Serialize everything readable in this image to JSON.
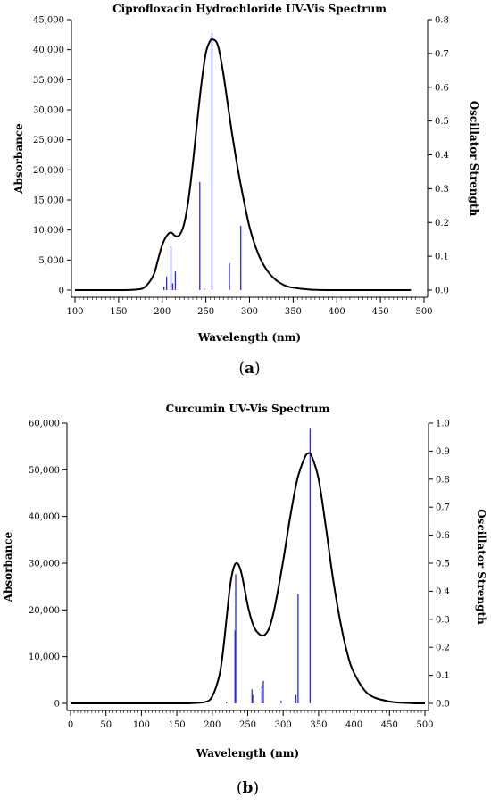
{
  "chart_data": [
    {
      "type": "line",
      "panel_label": "a",
      "title": "Ciprofloxacin Hydrochloride UV-Vis Spectrum",
      "xlabel": "Wavelength (nm)",
      "ylabel": "Absorbance",
      "y2label": "Oscillator Strength",
      "xlim": [
        100,
        500
      ],
      "ylim": [
        0,
        45000
      ],
      "y2lim": [
        0,
        0.8
      ],
      "xticks": [
        "100",
        "150",
        "200",
        "250",
        "300",
        "350",
        "400",
        "450",
        "500"
      ],
      "yticks": [
        "0",
        "5,000",
        "10,000",
        "15,000",
        "20,000",
        "25,000",
        "30,000",
        "35,000",
        "40,000",
        "45,000"
      ],
      "y2ticks": [
        "0.0",
        "0.1",
        "0.2",
        "0.3",
        "0.4",
        "0.5",
        "0.6",
        "0.7",
        "0.8"
      ],
      "curve_color": "#000000",
      "stick_color": "#2b2bd9",
      "series": [
        {
          "name": "",
          "kind": "absorbance-curve",
          "x": [
            100,
            150,
            170,
            180,
            190,
            195,
            200,
            205,
            210,
            215,
            220,
            225,
            230,
            235,
            240,
            245,
            250,
            255,
            258,
            262,
            265,
            270,
            275,
            280,
            285,
            290,
            300,
            310,
            320,
            330,
            340,
            350,
            370,
            400,
            450,
            485
          ],
          "y": [
            0,
            0,
            100,
            500,
            2500,
            5000,
            7500,
            9000,
            9600,
            9000,
            9200,
            11000,
            15000,
            21000,
            28000,
            34500,
            39500,
            41500,
            41700,
            41300,
            40000,
            36000,
            31000,
            26000,
            21500,
            17500,
            10500,
            6000,
            3300,
            1700,
            800,
            400,
            80,
            0,
            0,
            0
          ]
        },
        {
          "name": "",
          "kind": "oscillator-sticks",
          "x": [
            202,
            205,
            210,
            212,
            215,
            243,
            248,
            257,
            277,
            290
          ],
          "y": [
            0.01,
            0.04,
            0.13,
            0.02,
            0.055,
            0.32,
            0.005,
            0.76,
            0.08,
            0.19
          ]
        }
      ]
    },
    {
      "type": "line",
      "panel_label": "b",
      "title": "Curcumin UV-Vis Spectrum",
      "xlabel": "Wavelength (nm)",
      "ylabel": "Absorbance",
      "y2label": "Oscillator Strength",
      "xlim": [
        0,
        500
      ],
      "ylim": [
        0,
        60000
      ],
      "y2lim": [
        0,
        1.0
      ],
      "xticks": [
        "0",
        "50",
        "100",
        "150",
        "200",
        "250",
        "300",
        "350",
        "400",
        "450",
        "500"
      ],
      "yticks": [
        "0",
        "10,000",
        "20,000",
        "30,000",
        "40,000",
        "50,000",
        "60,000"
      ],
      "y2ticks": [
        "0.0",
        "0.1",
        "0.2",
        "0.3",
        "0.4",
        "0.5",
        "0.6",
        "0.7",
        "0.8",
        "0.9",
        "1.0"
      ],
      "curve_color": "#000000",
      "stick_color": "#2b2bd9",
      "series": [
        {
          "name": "",
          "kind": "absorbance-curve",
          "x": [
            0,
            150,
            170,
            190,
            200,
            210,
            215,
            220,
            225,
            230,
            235,
            240,
            245,
            250,
            255,
            260,
            265,
            270,
            275,
            280,
            285,
            290,
            300,
            310,
            320,
            330,
            335,
            340,
            350,
            360,
            370,
            380,
            390,
            400,
            420,
            450,
            480,
            500
          ],
          "y": [
            0,
            0,
            50,
            300,
            1500,
            6000,
            11000,
            18000,
            25000,
            29000,
            30000,
            28500,
            25000,
            21000,
            18000,
            16000,
            15000,
            14500,
            14800,
            16000,
            18500,
            22000,
            30500,
            40000,
            48000,
            52500,
            53500,
            53000,
            48000,
            38000,
            27000,
            18000,
            11000,
            6500,
            2000,
            400,
            50,
            0
          ]
        },
        {
          "name": "",
          "kind": "oscillator-sticks",
          "x": [
            220,
            232,
            233,
            256,
            257,
            270,
            272,
            297,
            318,
            321,
            338
          ],
          "y": [
            0.005,
            0.26,
            0.46,
            0.05,
            0.03,
            0.06,
            0.08,
            0.01,
            0.03,
            0.39,
            0.98
          ]
        }
      ]
    }
  ]
}
